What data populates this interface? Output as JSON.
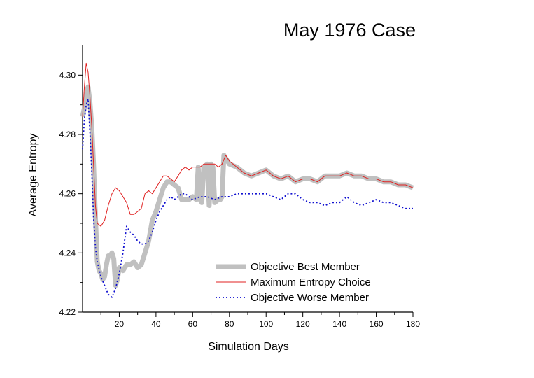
{
  "chart_data": {
    "type": "line",
    "title": "May 1976 Case",
    "xlabel": "Simulation Days",
    "ylabel": "Average Entropy",
    "xlim": [
      0,
      180
    ],
    "ylim": [
      4.22,
      4.31
    ],
    "x_ticks": [
      20,
      40,
      60,
      80,
      100,
      120,
      140,
      160,
      180
    ],
    "y_ticks": [
      4.22,
      4.24,
      4.26,
      4.28,
      4.3
    ],
    "x_tick_labels": [
      "20",
      "40",
      "60",
      "80",
      "100",
      "120",
      "140",
      "160",
      "180"
    ],
    "y_tick_labels": [
      "4.22",
      "4.24",
      "4.26",
      "4.28",
      "4.30"
    ],
    "legend_position": "bottom-right",
    "series": [
      {
        "name": "Objective Best Member",
        "color": "#c0c0c0",
        "style": "thick-solid",
        "points": [
          [
            0,
            4.286
          ],
          [
            1,
            4.289
          ],
          [
            2,
            4.293
          ],
          [
            3,
            4.296
          ],
          [
            4,
            4.291
          ],
          [
            5,
            4.283
          ],
          [
            6,
            4.27
          ],
          [
            7,
            4.252
          ],
          [
            8,
            4.237
          ],
          [
            9,
            4.234
          ],
          [
            10,
            4.233
          ],
          [
            11,
            4.231
          ],
          [
            12,
            4.232
          ],
          [
            13,
            4.236
          ],
          [
            14,
            4.239
          ],
          [
            15,
            4.239
          ],
          [
            16,
            4.24
          ],
          [
            17,
            4.238
          ],
          [
            18,
            4.229
          ],
          [
            19,
            4.231
          ],
          [
            20,
            4.235
          ],
          [
            22,
            4.234
          ],
          [
            24,
            4.236
          ],
          [
            26,
            4.236
          ],
          [
            28,
            4.237
          ],
          [
            30,
            4.235
          ],
          [
            32,
            4.236
          ],
          [
            34,
            4.24
          ],
          [
            36,
            4.244
          ],
          [
            38,
            4.251
          ],
          [
            40,
            4.254
          ],
          [
            42,
            4.258
          ],
          [
            44,
            4.262
          ],
          [
            46,
            4.264
          ],
          [
            48,
            4.264
          ],
          [
            50,
            4.263
          ],
          [
            52,
            4.262
          ],
          [
            54,
            4.258
          ],
          [
            56,
            4.258
          ],
          [
            58,
            4.258
          ],
          [
            60,
            4.259
          ],
          [
            62,
            4.258
          ],
          [
            63,
            4.269
          ],
          [
            64,
            4.258
          ],
          [
            65,
            4.257
          ],
          [
            66,
            4.269
          ],
          [
            68,
            4.27
          ],
          [
            69,
            4.256
          ],
          [
            70,
            4.27
          ],
          [
            71,
            4.269
          ],
          [
            72,
            4.257
          ],
          [
            74,
            4.258
          ],
          [
            75,
            4.258
          ],
          [
            76,
            4.259
          ],
          [
            77,
            4.273
          ],
          [
            78,
            4.272
          ],
          [
            80,
            4.27
          ],
          [
            84,
            4.269
          ],
          [
            88,
            4.267
          ],
          [
            92,
            4.266
          ],
          [
            96,
            4.267
          ],
          [
            100,
            4.268
          ],
          [
            104,
            4.266
          ],
          [
            108,
            4.265
          ],
          [
            112,
            4.266
          ],
          [
            116,
            4.264
          ],
          [
            120,
            4.265
          ],
          [
            124,
            4.265
          ],
          [
            128,
            4.264
          ],
          [
            132,
            4.266
          ],
          [
            136,
            4.266
          ],
          [
            140,
            4.266
          ],
          [
            144,
            4.267
          ],
          [
            148,
            4.266
          ],
          [
            152,
            4.266
          ],
          [
            156,
            4.265
          ],
          [
            160,
            4.265
          ],
          [
            164,
            4.264
          ],
          [
            168,
            4.264
          ],
          [
            172,
            4.263
          ],
          [
            176,
            4.263
          ],
          [
            180,
            4.262
          ]
        ]
      },
      {
        "name": "Maximum Entropy Choice",
        "color": "#e02020",
        "style": "thin-solid",
        "points": [
          [
            0,
            4.286
          ],
          [
            1,
            4.296
          ],
          [
            2,
            4.304
          ],
          [
            3,
            4.301
          ],
          [
            4,
            4.293
          ],
          [
            5,
            4.283
          ],
          [
            6,
            4.27
          ],
          [
            7,
            4.256
          ],
          [
            8,
            4.25
          ],
          [
            10,
            4.249
          ],
          [
            12,
            4.251
          ],
          [
            14,
            4.256
          ],
          [
            16,
            4.26
          ],
          [
            18,
            4.262
          ],
          [
            20,
            4.261
          ],
          [
            22,
            4.259
          ],
          [
            24,
            4.257
          ],
          [
            26,
            4.253
          ],
          [
            28,
            4.253
          ],
          [
            30,
            4.254
          ],
          [
            32,
            4.255
          ],
          [
            34,
            4.26
          ],
          [
            36,
            4.261
          ],
          [
            38,
            4.26
          ],
          [
            40,
            4.262
          ],
          [
            42,
            4.264
          ],
          [
            44,
            4.266
          ],
          [
            46,
            4.266
          ],
          [
            48,
            4.265
          ],
          [
            50,
            4.264
          ],
          [
            52,
            4.266
          ],
          [
            54,
            4.268
          ],
          [
            56,
            4.269
          ],
          [
            58,
            4.268
          ],
          [
            60,
            4.269
          ],
          [
            62,
            4.269
          ],
          [
            64,
            4.269
          ],
          [
            66,
            4.27
          ],
          [
            68,
            4.27
          ],
          [
            70,
            4.27
          ],
          [
            72,
            4.27
          ],
          [
            74,
            4.269
          ],
          [
            76,
            4.27
          ],
          [
            78,
            4.273
          ],
          [
            80,
            4.271
          ],
          [
            84,
            4.269
          ],
          [
            88,
            4.267
          ],
          [
            92,
            4.266
          ],
          [
            96,
            4.267
          ],
          [
            100,
            4.268
          ],
          [
            104,
            4.266
          ],
          [
            108,
            4.265
          ],
          [
            112,
            4.266
          ],
          [
            116,
            4.264
          ],
          [
            120,
            4.265
          ],
          [
            124,
            4.265
          ],
          [
            128,
            4.264
          ],
          [
            132,
            4.266
          ],
          [
            136,
            4.266
          ],
          [
            140,
            4.266
          ],
          [
            144,
            4.267
          ],
          [
            148,
            4.266
          ],
          [
            152,
            4.266
          ],
          [
            156,
            4.265
          ],
          [
            160,
            4.265
          ],
          [
            164,
            4.264
          ],
          [
            168,
            4.264
          ],
          [
            172,
            4.263
          ],
          [
            176,
            4.263
          ],
          [
            180,
            4.262
          ]
        ]
      },
      {
        "name": "Objective Worse Member",
        "color": "#1010d0",
        "style": "dotted",
        "points": [
          [
            0,
            4.275
          ],
          [
            1,
            4.285
          ],
          [
            2,
            4.29
          ],
          [
            3,
            4.292
          ],
          [
            4,
            4.281
          ],
          [
            5,
            4.268
          ],
          [
            6,
            4.252
          ],
          [
            7,
            4.242
          ],
          [
            8,
            4.237
          ],
          [
            10,
            4.232
          ],
          [
            12,
            4.229
          ],
          [
            14,
            4.226
          ],
          [
            16,
            4.225
          ],
          [
            18,
            4.228
          ],
          [
            20,
            4.233
          ],
          [
            22,
            4.24
          ],
          [
            24,
            4.249
          ],
          [
            26,
            4.247
          ],
          [
            28,
            4.246
          ],
          [
            30,
            4.244
          ],
          [
            32,
            4.243
          ],
          [
            34,
            4.243
          ],
          [
            36,
            4.244
          ],
          [
            38,
            4.247
          ],
          [
            40,
            4.251
          ],
          [
            42,
            4.254
          ],
          [
            44,
            4.256
          ],
          [
            46,
            4.258
          ],
          [
            48,
            4.259
          ],
          [
            50,
            4.258
          ],
          [
            52,
            4.259
          ],
          [
            54,
            4.26
          ],
          [
            56,
            4.26
          ],
          [
            58,
            4.259
          ],
          [
            60,
            4.258
          ],
          [
            64,
            4.259
          ],
          [
            68,
            4.259
          ],
          [
            72,
            4.258
          ],
          [
            76,
            4.259
          ],
          [
            80,
            4.259
          ],
          [
            84,
            4.26
          ],
          [
            88,
            4.26
          ],
          [
            92,
            4.26
          ],
          [
            96,
            4.26
          ],
          [
            100,
            4.26
          ],
          [
            104,
            4.259
          ],
          [
            108,
            4.258
          ],
          [
            112,
            4.26
          ],
          [
            116,
            4.26
          ],
          [
            120,
            4.258
          ],
          [
            124,
            4.257
          ],
          [
            128,
            4.257
          ],
          [
            132,
            4.256
          ],
          [
            136,
            4.257
          ],
          [
            140,
            4.257
          ],
          [
            144,
            4.259
          ],
          [
            148,
            4.257
          ],
          [
            152,
            4.256
          ],
          [
            156,
            4.257
          ],
          [
            160,
            4.258
          ],
          [
            164,
            4.257
          ],
          [
            168,
            4.257
          ],
          [
            172,
            4.256
          ],
          [
            176,
            4.255
          ],
          [
            180,
            4.255
          ]
        ]
      }
    ]
  }
}
